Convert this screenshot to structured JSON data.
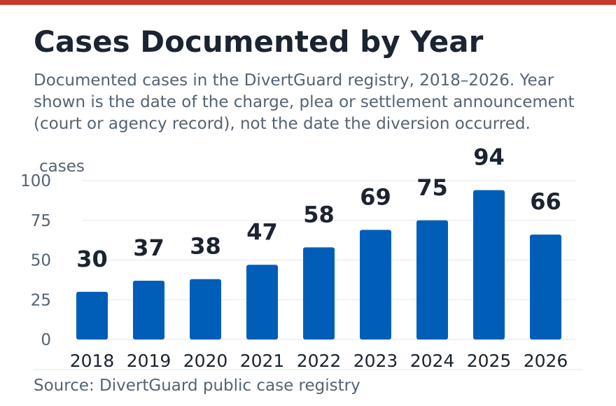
{
  "header": {
    "title": "Cases Documented by Year",
    "subtitle": "Documented cases in the DivertGuard registry, 2018–2026. Year shown is the date of the charge, plea or settlement announcement (court or agency record), not the date the diversion occurred."
  },
  "colors": {
    "accent": "#c8392b",
    "bar": "#005eb8"
  },
  "chart_data": {
    "type": "bar",
    "ylabel": "cases",
    "categories": [
      "2018",
      "2019",
      "2020",
      "2021",
      "2022",
      "2023",
      "2024",
      "2025",
      "2026"
    ],
    "values": [
      30,
      37,
      38,
      47,
      58,
      69,
      75,
      94,
      66
    ],
    "ylim": [
      0,
      100
    ],
    "yticks": [
      0,
      25,
      50,
      75,
      100
    ],
    "grid": true,
    "legend": "none"
  },
  "footer": {
    "source": "Source: DivertGuard public case registry"
  }
}
